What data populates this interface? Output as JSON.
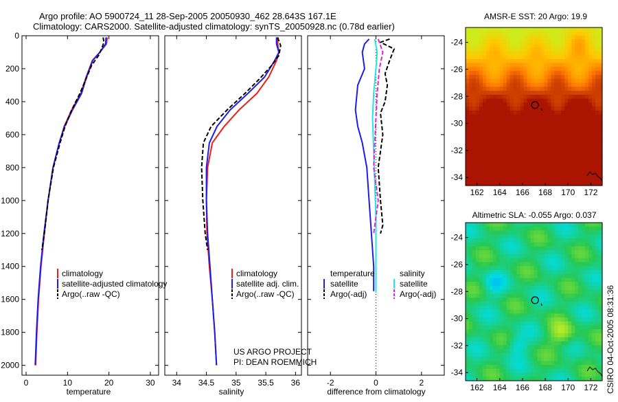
{
  "header": {
    "line1": "Argo profile: AO 5900724_11 28-Sep-2005 20050930_462 28.643S 167.1E",
    "line2": "Climatology: CARS2000. Satellite-adjusted climatology: synTS_20050928.nc (0.78d earlier)"
  },
  "credits": {
    "project": "US ARGO PROJECT",
    "pi": "PI: DEAN ROEMMICH",
    "side": "CSIRO 04-Oct-2005 08:31:36"
  },
  "colors": {
    "climatology": "#ee1c1c",
    "satellite": "#1c1cee",
    "argo": "#000000",
    "satellite_salinity": "#22e6e6",
    "argo_salinity": "#e020e0"
  },
  "chart_data": [
    {
      "id": "temperature",
      "type": "line",
      "xlabel": "temperature",
      "ylabel": "",
      "xlim": [
        -1,
        32
      ],
      "ylim": [
        2060,
        0
      ],
      "xticks": [
        0,
        10,
        20,
        30
      ],
      "yticks": [
        0,
        200,
        400,
        600,
        800,
        1000,
        1200,
        1400,
        1600,
        1800,
        2000
      ],
      "legend": [
        "climatology",
        "satellite-adjusted climatology",
        "Argo(..raw -QC)"
      ],
      "series": [
        {
          "name": "climatology",
          "color": "#ee1c1c",
          "dash": "",
          "x": [
            19.6,
            19.4,
            17.8,
            16,
            14.5,
            13.2,
            11,
            9.2,
            8,
            6.5,
            5.3,
            4.4,
            3.6,
            3,
            2.6,
            2.3
          ],
          "y": [
            10,
            50,
            100,
            150,
            250,
            350,
            450,
            550,
            650,
            800,
            1000,
            1200,
            1400,
            1600,
            1800,
            2000
          ]
        },
        {
          "name": "satellite-adjusted climatology",
          "color": "#1c1cee",
          "dash": "",
          "x": [
            19.3,
            19.2,
            17.8,
            16.1,
            14.6,
            13.4,
            11.2,
            9.3,
            8,
            6.5,
            5.3,
            4.3,
            3.5,
            2.9,
            2.5,
            2.2
          ],
          "y": [
            10,
            50,
            100,
            150,
            250,
            350,
            450,
            550,
            650,
            800,
            1000,
            1200,
            1400,
            1600,
            1800,
            2000
          ]
        },
        {
          "name": "Argo(..raw -QC)",
          "color": "#000000",
          "dash": "6,3",
          "x": [
            18.6,
            18.8,
            18.2,
            17.5,
            15.8,
            14.5,
            13,
            11,
            9.4,
            8.2,
            6.6,
            5.3,
            4.4,
            3.8
          ],
          "y": [
            10,
            40,
            80,
            120,
            180,
            260,
            350,
            450,
            550,
            650,
            800,
            1000,
            1200,
            1300
          ]
        }
      ]
    },
    {
      "id": "salinity",
      "type": "line",
      "xlabel": "salinity",
      "ylabel": "",
      "xlim": [
        33.8,
        36.1
      ],
      "ylim": [
        2060,
        0
      ],
      "xticks": [
        34,
        34.5,
        35,
        35.5,
        36
      ],
      "yticks": [],
      "legend": [
        "climatology",
        "satellite adj. clim.",
        "Argo(..raw -QC)"
      ],
      "series": [
        {
          "name": "climatology",
          "color": "#ee1c1c",
          "dash": "",
          "x": [
            35.7,
            35.7,
            35.72,
            35.68,
            35.55,
            35.35,
            35.05,
            34.8,
            34.6,
            34.52,
            34.5,
            34.51,
            34.55,
            34.6,
            34.64,
            34.67
          ],
          "y": [
            10,
            50,
            100,
            150,
            250,
            350,
            450,
            550,
            650,
            800,
            1000,
            1200,
            1400,
            1600,
            1800,
            2000
          ]
        },
        {
          "name": "satellite adj. clim.",
          "color": "#1c1cee",
          "dash": "",
          "x": [
            35.68,
            35.68,
            35.72,
            35.65,
            35.48,
            35.2,
            34.9,
            34.68,
            34.55,
            34.5,
            34.5,
            34.52,
            34.56,
            34.6,
            34.64,
            34.67
          ],
          "y": [
            10,
            50,
            100,
            150,
            250,
            350,
            450,
            550,
            650,
            800,
            1000,
            1200,
            1400,
            1600,
            1800,
            2000
          ]
        },
        {
          "name": "Argo(..raw -QC)",
          "color": "#000000",
          "dash": "6,3",
          "x": [
            35.7,
            35.75,
            35.72,
            35.6,
            35.4,
            35.15,
            34.85,
            34.58,
            34.45,
            34.42,
            34.44,
            34.48,
            34.52
          ],
          "y": [
            10,
            60,
            120,
            180,
            260,
            350,
            450,
            550,
            650,
            800,
            1000,
            1200,
            1300
          ]
        }
      ]
    },
    {
      "id": "difference",
      "type": "line",
      "xlabel": "difference from climatology",
      "ylabel": "",
      "xlim": [
        -3,
        3
      ],
      "ylim": [
        2060,
        0
      ],
      "xticks": [
        -2,
        0,
        2
      ],
      "yticks": [],
      "legend_temperature": {
        "heading": "temperature",
        "items": [
          "satellite",
          "Argo(-adj)"
        ]
      },
      "legend_salinity": {
        "heading": "salinity",
        "items": [
          "satellite",
          "Argo(-adj)"
        ]
      },
      "series": [
        {
          "name": "temperature satellite",
          "color": "#1c1cee",
          "dash": "",
          "x": [
            -0.3,
            -0.5,
            -0.6,
            -0.5,
            -0.8,
            -0.9,
            -0.8,
            -0.6,
            -0.4,
            -0.3,
            -0.2,
            -0.1,
            -0.1,
            -0.1
          ],
          "y": [
            20,
            50,
            100,
            200,
            300,
            450,
            550,
            650,
            800,
            1000,
            1200,
            1400,
            1500,
            1550
          ]
        },
        {
          "name": "temperature Argo(-adj)",
          "color": "#000000",
          "dash": "6,3",
          "x": [
            0.6,
            0.2,
            0.8,
            0.6,
            0.4,
            0.5,
            0.4,
            0.2,
            0.3,
            0.1,
            0.2,
            0.3,
            0.2
          ],
          "y": [
            20,
            40,
            80,
            150,
            230,
            300,
            400,
            470,
            600,
            800,
            1000,
            1150,
            1200
          ]
        },
        {
          "name": "salinity satellite",
          "color": "#22e6e6",
          "dash": "",
          "x": [
            -0.05,
            0.05,
            0,
            -0.1,
            -0.15,
            -0.1,
            -0.05,
            0,
            0,
            0,
            0,
            0
          ],
          "y": [
            20,
            100,
            200,
            350,
            500,
            700,
            900,
            1100,
            1300,
            1500,
            1550,
            1560
          ]
        },
        {
          "name": "salinity Argo(-adj)",
          "color": "#e020e0",
          "dash": "6,3",
          "x": [
            0.1,
            0.3,
            0.15,
            0.05,
            0,
            -0.05,
            -0.1,
            0,
            0.1,
            0,
            -0.1
          ],
          "y": [
            20,
            100,
            200,
            350,
            500,
            650,
            800,
            900,
            1000,
            1100,
            1200
          ]
        }
      ]
    },
    {
      "id": "sst-map",
      "type": "heatmap",
      "title": "AMSR-E SST: 20 Argo: 19.9",
      "xlim": [
        161,
        173
      ],
      "ylim": [
        -34.6,
        -22.9
      ],
      "xticks": [
        162,
        164,
        166,
        168,
        170,
        172
      ],
      "yticks": [
        -24,
        -26,
        -28,
        -30,
        -32,
        -34
      ],
      "marker": {
        "x": 167.1,
        "y": -28.64
      },
      "field": "sst"
    },
    {
      "id": "sla-map",
      "type": "heatmap",
      "title": "Altimetric SLA: -0.055 Argo: 0.037",
      "xlim": [
        161,
        173
      ],
      "ylim": [
        -34.6,
        -22.9
      ],
      "xticks": [
        162,
        164,
        166,
        168,
        170,
        172
      ],
      "yticks": [
        -24,
        -26,
        -28,
        -30,
        -32,
        -34
      ],
      "marker": {
        "x": 167.1,
        "y": -28.64
      },
      "field": "sla"
    }
  ]
}
